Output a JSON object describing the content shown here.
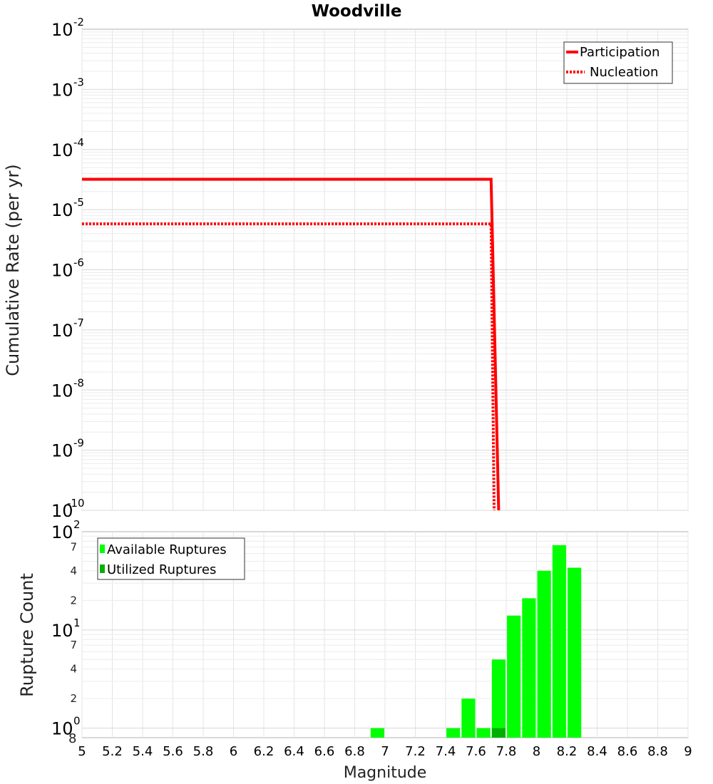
{
  "chart_data": [
    {
      "type": "line",
      "title": "Woodville",
      "ylabel": "Cumulative Rate (per yr)",
      "xlabel": "",
      "yscale": "log",
      "xlim": [
        5,
        9
      ],
      "ylim": [
        1e-10,
        0.01
      ],
      "y_tick_exponents": [
        "-2",
        "-3",
        "-4",
        "-5",
        "-6",
        "-7",
        "-8",
        "-9",
        "-10"
      ],
      "y_tick_base": "10",
      "legend_position": "top-right",
      "series": [
        {
          "name": "Participation",
          "style": "solid",
          "color": "#ff0000",
          "x": [
            5.0,
            7.7,
            7.75
          ],
          "y": [
            3.2e-05,
            3.2e-05,
            1e-10
          ]
        },
        {
          "name": "Nucleation",
          "style": "dotted",
          "color": "#ff0000",
          "x": [
            5.0,
            7.7,
            7.72
          ],
          "y": [
            5.8e-06,
            5.8e-06,
            1e-10
          ]
        }
      ]
    },
    {
      "type": "bar",
      "ylabel": "Rupture Count",
      "xlabel": "Magnitude",
      "yscale": "log",
      "xlim": [
        5,
        9
      ],
      "ylim": [
        0.8,
        100
      ],
      "bar_width": 0.09,
      "x_ticks": [
        "5",
        "5.2",
        "5.4",
        "5.6",
        "5.8",
        "6",
        "6.2",
        "6.4",
        "6.6",
        "6.8",
        "7",
        "7.2",
        "7.4",
        "7.6",
        "7.8",
        "8",
        "8.2",
        "8.4",
        "8.6",
        "8.8",
        "9"
      ],
      "y_major_ticks": [
        {
          "value": 1,
          "base": "10",
          "exp": "0"
        },
        {
          "value": 10,
          "base": "10",
          "exp": "1"
        },
        {
          "value": 100,
          "base": "10",
          "exp": "2"
        }
      ],
      "y_minor_ticks": [
        {
          "value": 2,
          "label": "2"
        },
        {
          "value": 4,
          "label": "4"
        },
        {
          "value": 7,
          "label": "7"
        },
        {
          "value": 20,
          "label": "2"
        },
        {
          "value": 40,
          "label": "4"
        },
        {
          "value": 70,
          "label": "7"
        }
      ],
      "y_bottom_label": "8",
      "legend_position": "top-left",
      "series": [
        {
          "name": "Available Ruptures",
          "color": "#00ff00",
          "x": [
            6.95,
            7.45,
            7.55,
            7.65,
            7.75,
            7.85,
            7.95,
            8.05,
            8.15,
            8.25
          ],
          "values": [
            1,
            1,
            2,
            1,
            5,
            14,
            21,
            40,
            73,
            43
          ]
        },
        {
          "name": "Utilized Ruptures",
          "color": "#00b000",
          "x": [
            7.75
          ],
          "values": [
            1
          ]
        }
      ]
    }
  ]
}
